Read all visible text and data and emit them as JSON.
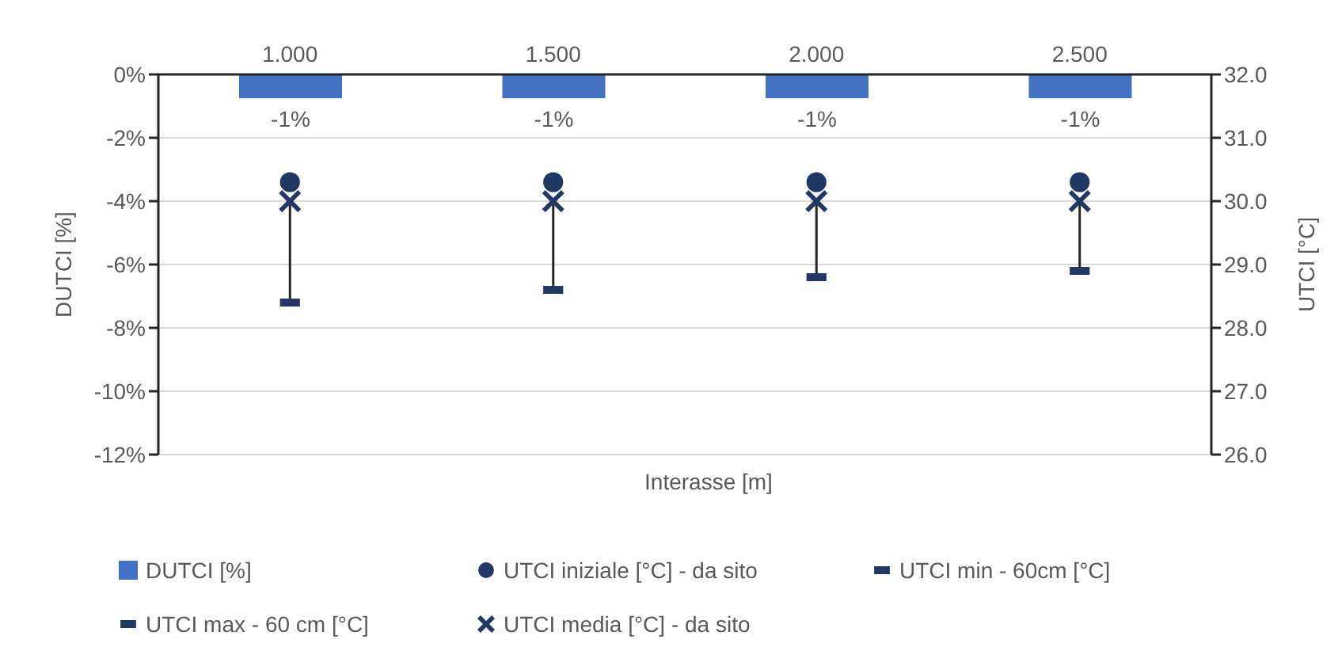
{
  "chart_data": {
    "type": "bar",
    "xlabel": "Interasse [m]",
    "ylabel": "DUTCI [%]",
    "y2label": "UTCI [°C]",
    "categories": [
      "1.000",
      "1.500",
      "2.000",
      "2.500"
    ],
    "series": [
      {
        "name": "DUTCI [%]",
        "color": "#4472c4",
        "values": [
          -0.75,
          -0.75,
          -0.75,
          -0.75
        ],
        "value_labels": [
          "-1%",
          "-1%",
          "-1%",
          "-1%"
        ]
      },
      {
        "name": "UTCI iniziale [°C] - da sito",
        "type": "scatter",
        "axis": "y2",
        "marker": "circle",
        "color": "#1f3864",
        "values": [
          30.3,
          30.3,
          30.3,
          30.3
        ]
      },
      {
        "name": "UTCI min - 60cm [°C]",
        "type": "scatter",
        "axis": "y2",
        "color": "#1f3864",
        "values": [
          28.4,
          28.6,
          28.8,
          28.9
        ]
      },
      {
        "name": "UTCI max - 60 cm [°C]",
        "type": "scatter",
        "axis": "y2",
        "color": "#1f3864",
        "values": [
          null,
          null,
          null,
          null
        ]
      },
      {
        "name": "UTCI media [°C] - da sito",
        "type": "scatter",
        "axis": "y2",
        "marker": "cross",
        "color": "#1f3864",
        "values": [
          30.0,
          30.0,
          30.0,
          30.0
        ]
      }
    ],
    "ylim": [
      -12,
      0
    ],
    "yticks": [
      {
        "value": -12,
        "label": "-12%"
      },
      {
        "value": -10,
        "label": "-10%"
      },
      {
        "value": -8,
        "label": "-8%"
      },
      {
        "value": -6,
        "label": "-6%"
      },
      {
        "value": -4,
        "label": "-4%"
      },
      {
        "value": -2,
        "label": "-2%"
      },
      {
        "value": 0,
        "label": "0%"
      }
    ],
    "y2lim": [
      26,
      32
    ],
    "y2ticks": [
      {
        "value": 26,
        "label": "26.0"
      },
      {
        "value": 27,
        "label": "27.0"
      },
      {
        "value": 28,
        "label": "28.0"
      },
      {
        "value": 29,
        "label": "29.0"
      },
      {
        "value": 30,
        "label": "30.0"
      },
      {
        "value": 31,
        "label": "31.0"
      },
      {
        "value": 32,
        "label": "32.0"
      }
    ],
    "grid": "y",
    "legend": "bottom"
  }
}
